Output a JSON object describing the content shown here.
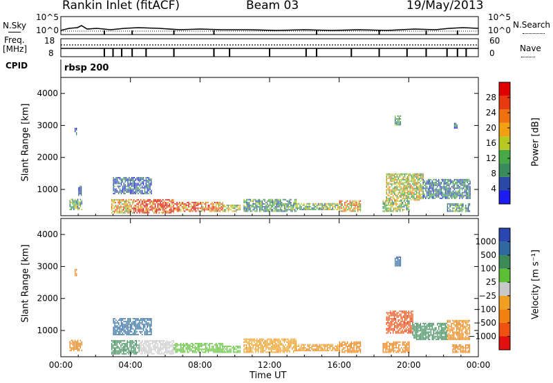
{
  "header": {
    "station": "Rankin Inlet (fitACF)",
    "beam": "Beam 03",
    "date": "19/May/2013"
  },
  "params": {
    "nsky_label": "N.Sky",
    "nsky_ticks": [
      "10^5",
      "10^0"
    ],
    "nsearch_label": "N.Search",
    "nsearch_ticks": [
      "10^5",
      "10^0"
    ],
    "freq_label": "Freq.",
    "freq_unit": "[MHz]",
    "freq_ticks": [
      "18",
      "8"
    ],
    "nave_label": "Nave",
    "nave_ticks": [
      "60",
      "0"
    ],
    "cpid_label": "CPID",
    "cpid_value": "rbsp 200"
  },
  "colors": {
    "power": [
      "#1c1cf0",
      "#2d49a8",
      "#3a8a5c",
      "#47a845",
      "#b8c820",
      "#f0a010",
      "#f07010",
      "#e83a10",
      "#e00000"
    ],
    "velocity": [
      "#2a46b0",
      "#2e6aa0",
      "#3c8a58",
      "#5cc034",
      "#c8c8c8",
      "#f0a020",
      "#f08010",
      "#f05010",
      "#e01010"
    ]
  },
  "chart_data": [
    {
      "type": "heatmap",
      "panel": "power",
      "ylabel": "Slant Range [km]",
      "yticks": [
        "4000",
        "3000",
        "2000",
        "1000"
      ],
      "ylim": [
        180,
        4500
      ],
      "xlim_hours": [
        0,
        24
      ],
      "colorbar_label": "Power [dB]",
      "colorbar_ticks": [
        "28",
        "24",
        "20",
        "16",
        "12",
        "8",
        "4"
      ],
      "colorbar_range": [
        0,
        32
      ],
      "regions": [
        {
          "t": [
            0.5,
            1.2
          ],
          "r": [
            350,
            700
          ],
          "v": 12
        },
        {
          "t": [
            1.0,
            1.2
          ],
          "r": [
            800,
            1100
          ],
          "v": 6
        },
        {
          "t": [
            2.9,
            4.2
          ],
          "r": [
            250,
            700
          ],
          "v": 20
        },
        {
          "t": [
            3.0,
            5.2
          ],
          "r": [
            850,
            1350
          ],
          "v": 6
        },
        {
          "t": [
            4.2,
            6.5
          ],
          "r": [
            250,
            700
          ],
          "v": 28
        },
        {
          "t": [
            6.5,
            8.0
          ],
          "r": [
            300,
            600
          ],
          "v": 25
        },
        {
          "t": [
            8.0,
            9.3
          ],
          "r": [
            300,
            600
          ],
          "v": 22
        },
        {
          "t": [
            9.3,
            10.3
          ],
          "r": [
            300,
            500
          ],
          "v": 15
        },
        {
          "t": [
            10.5,
            13.5
          ],
          "r": [
            300,
            700
          ],
          "v": 10
        },
        {
          "t": [
            13.5,
            16.0
          ],
          "r": [
            350,
            550
          ],
          "v": 13
        },
        {
          "t": [
            16.0,
            17.2
          ],
          "r": [
            300,
            650
          ],
          "v": 20
        },
        {
          "t": [
            18.5,
            20.0
          ],
          "r": [
            300,
            650
          ],
          "v": 14
        },
        {
          "t": [
            18.7,
            20.8
          ],
          "r": [
            650,
            1500
          ],
          "v": 16
        },
        {
          "t": [
            20.8,
            23.5
          ],
          "r": [
            700,
            1300
          ],
          "v": 8
        },
        {
          "t": [
            22.2,
            23.5
          ],
          "r": [
            300,
            550
          ],
          "v": 10
        },
        {
          "t": [
            0.8,
            0.9
          ],
          "r": [
            2700,
            2900
          ],
          "v": 6
        },
        {
          "t": [
            19.2,
            19.5
          ],
          "r": [
            3000,
            3300
          ],
          "v": 10
        },
        {
          "t": [
            22.6,
            22.8
          ],
          "r": [
            2900,
            3100
          ],
          "v": 6
        }
      ]
    },
    {
      "type": "heatmap",
      "panel": "velocity",
      "xlabel": "Time UT",
      "xticks": [
        "00:00",
        "04:00",
        "08:00",
        "12:00",
        "16:00",
        "20:00",
        "00:00"
      ],
      "ylabel": "Slant Range [km]",
      "yticks": [
        "4000",
        "3000",
        "2000",
        "1000"
      ],
      "ylim": [
        180,
        4500
      ],
      "xlim_hours": [
        0,
        24
      ],
      "colorbar_label": "Velocity [m s⁻¹]",
      "colorbar_ticks": [
        "1000",
        "500",
        "100",
        "25",
        "−25",
        "−100",
        "−500",
        "−1000"
      ],
      "regions": [
        {
          "t": [
            0.5,
            1.2
          ],
          "r": [
            350,
            700
          ],
          "v": -200
        },
        {
          "t": [
            3.0,
            5.2
          ],
          "r": [
            850,
            1350
          ],
          "v": 700
        },
        {
          "t": [
            2.9,
            4.5
          ],
          "r": [
            250,
            700
          ],
          "v": 150
        },
        {
          "t": [
            4.5,
            6.5
          ],
          "r": [
            250,
            700
          ],
          "v": 10
        },
        {
          "t": [
            6.5,
            9.3
          ],
          "r": [
            300,
            600
          ],
          "v": 60
        },
        {
          "t": [
            9.3,
            10.3
          ],
          "r": [
            300,
            500
          ],
          "v": 40
        },
        {
          "t": [
            10.5,
            13.5
          ],
          "r": [
            300,
            750
          ],
          "v": -80
        },
        {
          "t": [
            13.5,
            16.0
          ],
          "r": [
            350,
            550
          ],
          "v": -100
        },
        {
          "t": [
            16.0,
            17.2
          ],
          "r": [
            300,
            650
          ],
          "v": -150
        },
        {
          "t": [
            18.5,
            20.0
          ],
          "r": [
            300,
            650
          ],
          "v": -300
        },
        {
          "t": [
            18.7,
            20.2
          ],
          "r": [
            900,
            1600
          ],
          "v": -800
        },
        {
          "t": [
            20.2,
            22.2
          ],
          "r": [
            700,
            1200
          ],
          "v": 150
        },
        {
          "t": [
            22.2,
            23.5
          ],
          "r": [
            700,
            1300
          ],
          "v": -120
        },
        {
          "t": [
            22.5,
            23.5
          ],
          "r": [
            300,
            550
          ],
          "v": -200
        },
        {
          "t": [
            0.8,
            0.9
          ],
          "r": [
            2700,
            2900
          ],
          "v": -200
        },
        {
          "t": [
            19.2,
            19.5
          ],
          "r": [
            3000,
            3300
          ],
          "v": 800
        }
      ]
    }
  ]
}
